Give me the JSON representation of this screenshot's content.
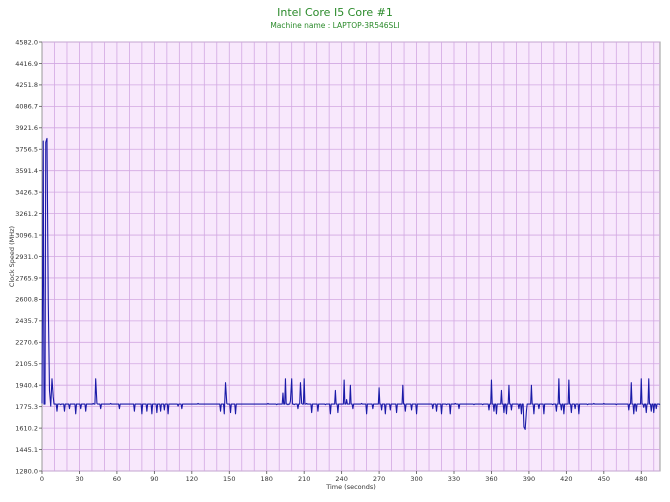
{
  "chart_data": {
    "type": "line",
    "title": "Intel Core I5 Core #1",
    "subtitle": "Machine name : LAPTOP-3R546SLI",
    "xlabel": "Time (seconds)",
    "ylabel": "Clock Speed (MHz)",
    "xlim": [
      0,
      495
    ],
    "ylim": [
      1280.0,
      4582.0
    ],
    "x_ticks": [
      0,
      30,
      60,
      90,
      120,
      150,
      180,
      210,
      240,
      270,
      300,
      330,
      360,
      390,
      420,
      450,
      480
    ],
    "y_ticks": [
      "1280.0",
      "1445.1",
      "1610.2",
      "1775.3",
      "1940.4",
      "2105.5",
      "2270.6",
      "2435.7",
      "2600.8",
      "2765.9",
      "2931.0",
      "3096.1",
      "3261.2",
      "3426.3",
      "3591.4",
      "3756.5",
      "3921.6",
      "4086.7",
      "4251.8",
      "4416.9",
      "4582.0"
    ],
    "grid": true,
    "baseline": 1795,
    "series": [
      {
        "color": "#1a1aa8",
        "points": [
          [
            0,
            1800
          ],
          [
            1,
            3820
          ],
          [
            3,
            3810
          ],
          [
            4,
            3840
          ],
          [
            5,
            2600
          ],
          [
            6,
            1900
          ],
          [
            7,
            1780
          ],
          [
            8,
            1990
          ],
          [
            9,
            1850
          ],
          [
            12,
            1740
          ],
          [
            15,
            1790
          ],
          [
            18,
            1740
          ],
          [
            22,
            1760
          ],
          [
            27,
            1720
          ],
          [
            31,
            1760
          ],
          [
            35,
            1740
          ],
          [
            41,
            1800
          ],
          [
            43,
            1990
          ],
          [
            44,
            1800
          ],
          [
            47,
            1760
          ],
          [
            55,
            1800
          ],
          [
            62,
            1760
          ],
          [
            74,
            1740
          ],
          [
            80,
            1720
          ],
          [
            84,
            1740
          ],
          [
            88,
            1720
          ],
          [
            92,
            1730
          ],
          [
            95,
            1740
          ],
          [
            98,
            1750
          ],
          [
            101,
            1720
          ],
          [
            109,
            1780
          ],
          [
            112,
            1760
          ],
          [
            125,
            1800
          ],
          [
            143,
            1740
          ],
          [
            146,
            1720
          ],
          [
            147,
            1960
          ],
          [
            148,
            1800
          ],
          [
            151,
            1730
          ],
          [
            155,
            1720
          ],
          [
            181,
            1800
          ],
          [
            188,
            1790
          ],
          [
            193,
            1880
          ],
          [
            195,
            1990
          ],
          [
            197,
            1790
          ],
          [
            199,
            1820
          ],
          [
            200,
            1990
          ],
          [
            202,
            1790
          ],
          [
            205,
            1760
          ],
          [
            207,
            1960
          ],
          [
            208,
            1800
          ],
          [
            210,
            1990
          ],
          [
            212,
            1800
          ],
          [
            216,
            1730
          ],
          [
            221,
            1740
          ],
          [
            227,
            1790
          ],
          [
            231,
            1720
          ],
          [
            235,
            1900
          ],
          [
            237,
            1730
          ],
          [
            242,
            1980
          ],
          [
            244,
            1830
          ],
          [
            247,
            1940
          ],
          [
            249,
            1760
          ],
          [
            256,
            1800
          ],
          [
            260,
            1720
          ],
          [
            265,
            1760
          ],
          [
            270,
            1920
          ],
          [
            272,
            1750
          ],
          [
            275,
            1720
          ],
          [
            279,
            1750
          ],
          [
            284,
            1730
          ],
          [
            289,
            1940
          ],
          [
            291,
            1740
          ],
          [
            296,
            1750
          ],
          [
            300,
            1720
          ],
          [
            313,
            1760
          ],
          [
            316,
            1740
          ],
          [
            320,
            1720
          ],
          [
            324,
            1790
          ],
          [
            327,
            1720
          ],
          [
            331,
            1800
          ],
          [
            334,
            1760
          ],
          [
            346,
            1790
          ],
          [
            353,
            1790
          ],
          [
            358,
            1750
          ],
          [
            360,
            1980
          ],
          [
            362,
            1740
          ],
          [
            364,
            1720
          ],
          [
            368,
            1900
          ],
          [
            370,
            1730
          ],
          [
            372,
            1720
          ],
          [
            374,
            1940
          ],
          [
            376,
            1750
          ],
          [
            382,
            1760
          ],
          [
            384,
            1720
          ],
          [
            386,
            1620
          ],
          [
            387,
            1600
          ],
          [
            388,
            1740
          ],
          [
            392,
            1940
          ],
          [
            394,
            1720
          ],
          [
            398,
            1760
          ],
          [
            402,
            1720
          ],
          [
            409,
            1790
          ],
          [
            412,
            1740
          ],
          [
            414,
            1990
          ],
          [
            416,
            1750
          ],
          [
            418,
            1720
          ],
          [
            422,
            1980
          ],
          [
            424,
            1730
          ],
          [
            427,
            1760
          ],
          [
            430,
            1720
          ],
          [
            437,
            1790
          ],
          [
            442,
            1800
          ],
          [
            450,
            1800
          ],
          [
            460,
            1790
          ],
          [
            470,
            1750
          ],
          [
            472,
            1960
          ],
          [
            474,
            1720
          ],
          [
            476,
            1740
          ],
          [
            480,
            1990
          ],
          [
            482,
            1770
          ],
          [
            484,
            1730
          ],
          [
            486,
            1990
          ],
          [
            488,
            1740
          ],
          [
            490,
            1730
          ],
          [
            492,
            1760
          ],
          [
            495,
            1790
          ]
        ]
      }
    ]
  }
}
